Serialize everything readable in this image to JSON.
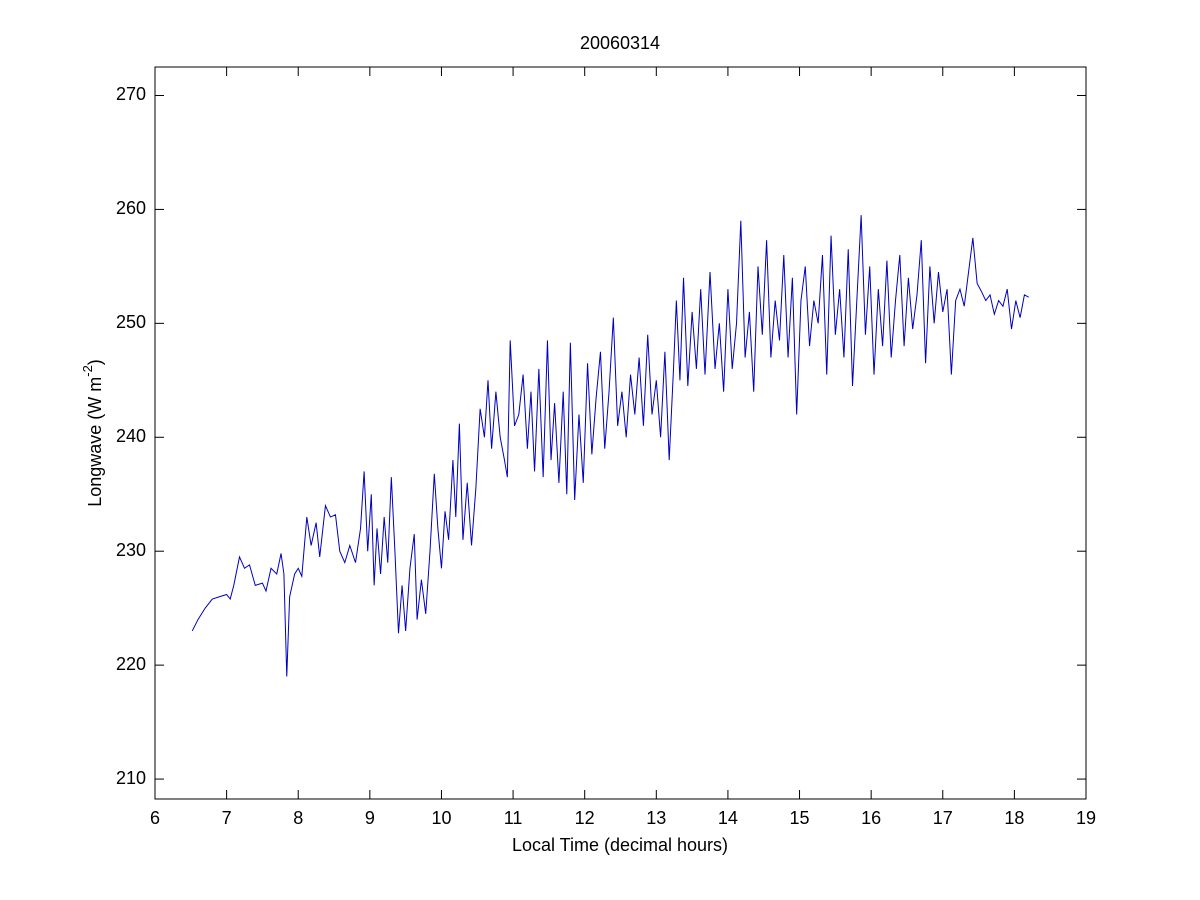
{
  "chart_data": {
    "type": "line",
    "title": "20060314",
    "xlabel": "Local Time (decimal hours)",
    "ylabel": [
      "Longwave (W m",
      "-2",
      ")"
    ],
    "color": "#0000c0",
    "xlim": [
      6,
      19
    ],
    "xticks": [
      6,
      7,
      8,
      9,
      10,
      11,
      12,
      13,
      14,
      15,
      16,
      17,
      18,
      19
    ],
    "ylim": [
      208.25,
      272.5
    ],
    "yticks": [
      210,
      220,
      230,
      240,
      250,
      260,
      270
    ],
    "x": [
      6.52,
      6.6,
      6.7,
      6.8,
      6.9,
      7.0,
      7.05,
      7.1,
      7.18,
      7.25,
      7.32,
      7.4,
      7.5,
      7.55,
      7.62,
      7.7,
      7.76,
      7.8,
      7.84,
      7.88,
      7.95,
      8.0,
      8.05,
      8.12,
      8.18,
      8.25,
      8.3,
      8.38,
      8.45,
      8.52,
      8.58,
      8.65,
      8.72,
      8.8,
      8.87,
      8.92,
      8.97,
      9.02,
      9.06,
      9.1,
      9.15,
      9.2,
      9.25,
      9.3,
      9.35,
      9.4,
      9.45,
      9.5,
      9.56,
      9.62,
      9.66,
      9.72,
      9.78,
      9.84,
      9.9,
      9.95,
      10.0,
      10.05,
      10.1,
      10.16,
      10.2,
      10.25,
      10.3,
      10.36,
      10.42,
      10.48,
      10.54,
      10.6,
      10.65,
      10.7,
      10.76,
      10.82,
      10.88,
      10.92,
      10.96,
      11.02,
      11.08,
      11.14,
      11.2,
      11.25,
      11.3,
      11.36,
      11.42,
      11.48,
      11.53,
      11.58,
      11.64,
      11.7,
      11.75,
      11.8,
      11.86,
      11.92,
      11.98,
      12.04,
      12.1,
      12.16,
      12.22,
      12.28,
      12.34,
      12.4,
      12.46,
      12.52,
      12.58,
      12.64,
      12.7,
      12.76,
      12.82,
      12.88,
      12.94,
      13.0,
      13.06,
      13.12,
      13.18,
      13.24,
      13.28,
      13.33,
      13.38,
      13.44,
      13.5,
      13.56,
      13.62,
      13.68,
      13.75,
      13.82,
      13.88,
      13.94,
      14.0,
      14.06,
      14.12,
      14.18,
      14.24,
      14.3,
      14.36,
      14.42,
      14.48,
      14.54,
      14.6,
      14.66,
      14.72,
      14.78,
      14.84,
      14.9,
      14.96,
      15.02,
      15.08,
      15.14,
      15.2,
      15.26,
      15.32,
      15.38,
      15.44,
      15.5,
      15.56,
      15.62,
      15.68,
      15.74,
      15.8,
      15.86,
      15.92,
      15.98,
      16.04,
      16.1,
      16.16,
      16.22,
      16.28,
      16.34,
      16.4,
      16.46,
      16.52,
      16.58,
      16.64,
      16.7,
      16.76,
      16.82,
      16.88,
      16.94,
      17.0,
      17.06,
      17.12,
      17.18,
      17.24,
      17.3,
      17.36,
      17.42,
      17.48,
      17.54,
      17.6,
      17.66,
      17.72,
      17.78,
      17.84,
      17.9,
      17.96,
      18.02,
      18.08,
      18.14,
      18.2
    ],
    "values": [
      223,
      224,
      225,
      225.8,
      226,
      226.2,
      225.8,
      227,
      229.5,
      228.5,
      228.8,
      227,
      227.2,
      226.5,
      228.5,
      228,
      229.8,
      228,
      219,
      226,
      228,
      228.5,
      227.8,
      233,
      230.5,
      232.5,
      229.5,
      234,
      233,
      233.2,
      230,
      229,
      230.5,
      229,
      232,
      237,
      230,
      235,
      227,
      232,
      228,
      233,
      229,
      236.5,
      230,
      222.8,
      227,
      223,
      228.5,
      231.5,
      224,
      227.5,
      224.5,
      230,
      236.8,
      232,
      228.5,
      233.5,
      231,
      238,
      233,
      241.2,
      231,
      236,
      230.5,
      235.5,
      242.5,
      240,
      245,
      239,
      244,
      240,
      238,
      236.5,
      248.5,
      241,
      242,
      245.5,
      239,
      244,
      237,
      246,
      236.5,
      248.5,
      238,
      243,
      236,
      244,
      235,
      248.3,
      234.5,
      242,
      236,
      246.5,
      238.5,
      243.5,
      247.5,
      239,
      244,
      250.5,
      241,
      244,
      240,
      245.5,
      242,
      247,
      241,
      249,
      242,
      245,
      240,
      247.5,
      238,
      246,
      252,
      245,
      254,
      244.5,
      251,
      246,
      253,
      245.5,
      254.5,
      246,
      250,
      244,
      253,
      246,
      250,
      259,
      247,
      251,
      244,
      255,
      249,
      257.3,
      247,
      252,
      248.5,
      256,
      247,
      254,
      242,
      252,
      255,
      248,
      252,
      250,
      256,
      245.5,
      257.7,
      249,
      253,
      247,
      256.5,
      244.5,
      252,
      259.5,
      249,
      255,
      245.5,
      253,
      248,
      255.5,
      247,
      252,
      256,
      248,
      254,
      249.5,
      252.5,
      257.3,
      246.5,
      255,
      250,
      254.5,
      251,
      253,
      245.5,
      252,
      253,
      251.5,
      254.5,
      257.5,
      253.5,
      252.8,
      252,
      252.5,
      250.8,
      252,
      251.5,
      253,
      249.5,
      252,
      250.5,
      252.5,
      252.3
    ]
  }
}
